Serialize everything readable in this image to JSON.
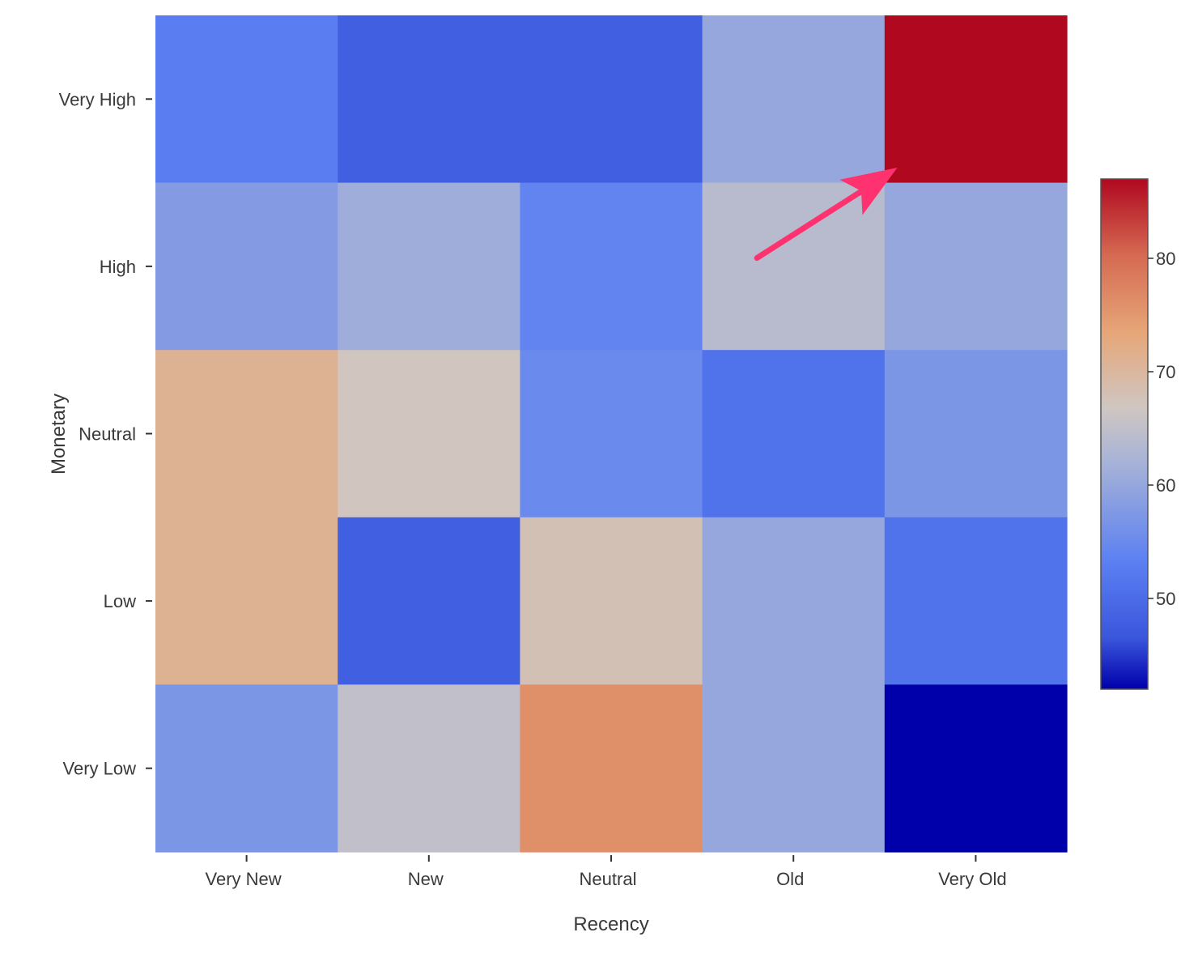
{
  "chart_data": {
    "type": "heatmap",
    "xlabel": "Recency",
    "ylabel": "Monetary",
    "x_categories": [
      "Very New",
      "New",
      "Neutral",
      "Old",
      "Very Old"
    ],
    "y_categories": [
      "Very High",
      "High",
      "Neutral",
      "Low",
      "Very Low"
    ],
    "values": [
      [
        53,
        48,
        48,
        60,
        87
      ],
      [
        58,
        61,
        54,
        64,
        60
      ],
      [
        71,
        67,
        55,
        51,
        57
      ],
      [
        71,
        48,
        68,
        60,
        51
      ],
      [
        57,
        65,
        76,
        60,
        42
      ]
    ],
    "colorbar": {
      "min": 42,
      "max": 87,
      "ticks": [
        50,
        60,
        70,
        80
      ],
      "colormap": "coolwarm"
    },
    "annotation": {
      "type": "arrow",
      "color": "#ff3270",
      "from_cell": {
        "row": 1,
        "col": 3
      },
      "to_cell": {
        "row": 0,
        "col": 4
      }
    }
  }
}
